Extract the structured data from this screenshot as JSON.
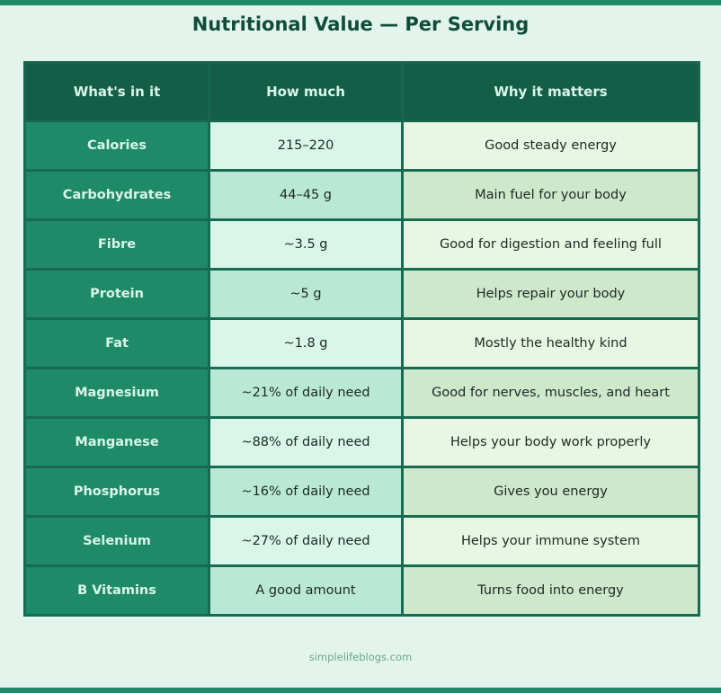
{
  "title": "Nutritional Value — Per Serving",
  "table": {
    "headers": [
      "What's in it",
      "How much",
      "Why it matters"
    ],
    "rows": [
      {
        "nutrient": "Calories",
        "amount": "215–220",
        "why": "Good steady energy"
      },
      {
        "nutrient": "Carbohydrates",
        "amount": "44–45 g",
        "why": "Main fuel for your body"
      },
      {
        "nutrient": "Fibre",
        "amount": "~3.5 g",
        "why": "Good for digestion and feeling full"
      },
      {
        "nutrient": "Protein",
        "amount": "~5 g",
        "why": "Helps repair your body"
      },
      {
        "nutrient": "Fat",
        "amount": "~1.8 g",
        "why": "Mostly the healthy kind"
      },
      {
        "nutrient": "Magnesium",
        "amount": "~21% of daily need",
        "why": "Good for nerves, muscles, and heart"
      },
      {
        "nutrient": "Manganese",
        "amount": "~88% of daily need",
        "why": "Helps your body work properly"
      },
      {
        "nutrient": "Phosphorus",
        "amount": "~16% of daily need",
        "why": "Gives you energy"
      },
      {
        "nutrient": "Selenium",
        "amount": "~27% of daily need",
        "why": "Helps your immune system"
      },
      {
        "nutrient": "B Vitamins",
        "amount": "A good amount",
        "why": "Turns food into energy"
      }
    ]
  },
  "footer": "simplelifeblogs.com",
  "colors": {
    "accent_bar": "#1e8a68",
    "background": "#e3f4ec",
    "title": "#0f4d3a",
    "header_bg": "#145e47",
    "nutrient_bg": "#1f8a68",
    "border": "#176b50"
  }
}
